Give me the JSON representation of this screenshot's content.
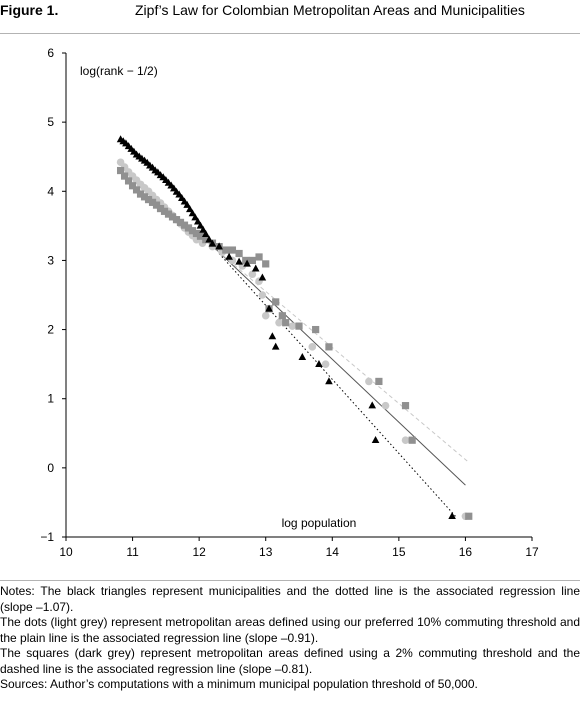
{
  "figure": {
    "label": "Figure 1.",
    "title": "Zipf’s Law for Colombian Metropolitan Areas and Municipalities"
  },
  "chart_data": {
    "type": "scatter",
    "ylabel": "log(rank − 1/2)",
    "xlabel": "log population",
    "xlim": [
      10,
      17
    ],
    "ylim": [
      -1,
      6
    ],
    "x_ticks": [
      "10",
      "11",
      "12",
      "13",
      "14",
      "15",
      "16",
      "17"
    ],
    "y_ticks": [
      "−1",
      "0",
      "1",
      "2",
      "3",
      "4",
      "5",
      "6"
    ],
    "grid": false,
    "series": [
      {
        "marker": "triangle",
        "color": "#000000",
        "points": [
          [
            10.82,
            4.75
          ],
          [
            10.86,
            4.72
          ],
          [
            10.9,
            4.69
          ],
          [
            10.94,
            4.65
          ],
          [
            10.98,
            4.61
          ],
          [
            11.02,
            4.57
          ],
          [
            11.06,
            4.53
          ],
          [
            11.1,
            4.5
          ],
          [
            11.14,
            4.47
          ],
          [
            11.18,
            4.44
          ],
          [
            11.22,
            4.41
          ],
          [
            11.26,
            4.37
          ],
          [
            11.3,
            4.34
          ],
          [
            11.34,
            4.3
          ],
          [
            11.38,
            4.27
          ],
          [
            11.42,
            4.23
          ],
          [
            11.46,
            4.2
          ],
          [
            11.5,
            4.16
          ],
          [
            11.54,
            4.12
          ],
          [
            11.58,
            4.08
          ],
          [
            11.62,
            4.04
          ],
          [
            11.66,
            3.99
          ],
          [
            11.7,
            3.95
          ],
          [
            11.74,
            3.9
          ],
          [
            11.78,
            3.85
          ],
          [
            11.82,
            3.8
          ],
          [
            11.86,
            3.74
          ],
          [
            11.9,
            3.68
          ],
          [
            11.94,
            3.62
          ],
          [
            11.98,
            3.56
          ],
          [
            12.02,
            3.5
          ],
          [
            12.06,
            3.44
          ],
          [
            12.1,
            3.38
          ],
          [
            12.15,
            3.3
          ],
          [
            12.2,
            3.24
          ],
          [
            12.3,
            3.2
          ],
          [
            12.45,
            3.05
          ],
          [
            12.6,
            2.98
          ],
          [
            12.72,
            2.95
          ],
          [
            12.85,
            2.88
          ],
          [
            12.95,
            2.75
          ],
          [
            13.05,
            2.3
          ],
          [
            13.1,
            1.9
          ],
          [
            13.15,
            1.75
          ],
          [
            13.55,
            1.6
          ],
          [
            13.8,
            1.5
          ],
          [
            13.95,
            1.25
          ],
          [
            14.6,
            0.9
          ],
          [
            14.65,
            0.4
          ],
          [
            15.8,
            -0.7
          ]
        ]
      },
      {
        "marker": "circle",
        "color": "#c8c8c8",
        "points": [
          [
            10.82,
            4.42
          ],
          [
            10.88,
            4.35
          ],
          [
            10.94,
            4.28
          ],
          [
            11.0,
            4.22
          ],
          [
            11.06,
            4.16
          ],
          [
            11.12,
            4.1
          ],
          [
            11.18,
            4.05
          ],
          [
            11.24,
            4.0
          ],
          [
            11.3,
            3.94
          ],
          [
            11.36,
            3.88
          ],
          [
            11.42,
            3.83
          ],
          [
            11.48,
            3.77
          ],
          [
            11.54,
            3.71
          ],
          [
            11.6,
            3.65
          ],
          [
            11.66,
            3.59
          ],
          [
            11.72,
            3.53
          ],
          [
            11.78,
            3.47
          ],
          [
            11.84,
            3.41
          ],
          [
            11.9,
            3.36
          ],
          [
            11.96,
            3.3
          ],
          [
            12.05,
            3.25
          ],
          [
            12.2,
            3.2
          ],
          [
            12.35,
            3.12
          ],
          [
            12.5,
            3.0
          ],
          [
            12.65,
            2.92
          ],
          [
            12.8,
            2.8
          ],
          [
            12.9,
            2.7
          ],
          [
            12.95,
            2.5
          ],
          [
            13.0,
            2.2
          ],
          [
            13.2,
            2.1
          ],
          [
            13.4,
            2.05
          ],
          [
            13.7,
            1.75
          ],
          [
            13.9,
            1.5
          ],
          [
            14.55,
            1.25
          ],
          [
            14.8,
            0.9
          ],
          [
            15.1,
            0.4
          ],
          [
            16.0,
            -0.7
          ]
        ]
      },
      {
        "marker": "square",
        "color": "#909090",
        "points": [
          [
            10.82,
            4.3
          ],
          [
            10.88,
            4.22
          ],
          [
            10.94,
            4.15
          ],
          [
            11.0,
            4.08
          ],
          [
            11.06,
            4.02
          ],
          [
            11.12,
            3.96
          ],
          [
            11.18,
            3.92
          ],
          [
            11.24,
            3.88
          ],
          [
            11.3,
            3.84
          ],
          [
            11.36,
            3.8
          ],
          [
            11.42,
            3.75
          ],
          [
            11.48,
            3.71
          ],
          [
            11.54,
            3.67
          ],
          [
            11.6,
            3.63
          ],
          [
            11.66,
            3.59
          ],
          [
            11.72,
            3.55
          ],
          [
            11.78,
            3.51
          ],
          [
            11.84,
            3.47
          ],
          [
            11.9,
            3.43
          ],
          [
            11.96,
            3.39
          ],
          [
            12.02,
            3.35
          ],
          [
            12.1,
            3.3
          ],
          [
            12.2,
            3.25
          ],
          [
            12.3,
            3.2
          ],
          [
            12.4,
            3.15
          ],
          [
            12.5,
            3.15
          ],
          [
            12.6,
            3.1
          ],
          [
            12.7,
            3.0
          ],
          [
            12.8,
            3.0
          ],
          [
            12.9,
            3.05
          ],
          [
            13.0,
            2.95
          ],
          [
            13.05,
            2.3
          ],
          [
            13.15,
            2.4
          ],
          [
            13.25,
            2.2
          ],
          [
            13.3,
            2.1
          ],
          [
            13.5,
            2.05
          ],
          [
            13.75,
            2.0
          ],
          [
            13.95,
            1.75
          ],
          [
            14.7,
            1.25
          ],
          [
            15.1,
            0.9
          ],
          [
            15.2,
            0.4
          ],
          [
            16.05,
            -0.7
          ]
        ]
      }
    ],
    "regression_lines": [
      {
        "style": "dotted",
        "color": "#000000",
        "x": [
          12.3,
          15.85
        ],
        "y": [
          3.1,
          -0.7
        ]
      },
      {
        "style": "solid",
        "color": "#555555",
        "x": [
          12.1,
          16.0
        ],
        "y": [
          3.3,
          -0.25
        ]
      },
      {
        "style": "dashed",
        "color": "#c8c8c8",
        "x": [
          12.2,
          16.05
        ],
        "y": [
          3.2,
          0.08
        ]
      }
    ]
  },
  "notes": [
    "Notes: The black triangles represent municipalities and the dotted line is the associated regression line (slope –1.07).",
    "The dots (light grey) represent metropolitan areas defined using our preferred 10% commuting threshold and the plain line is the associated regression line (slope –0.91).",
    "The squares (dark grey) represent metropolitan areas defined using a 2% commuting threshold and the dashed line is the associated regression line (slope –0.81).",
    "Sources: Author’s computations with a minimum municipal population threshold of 50,000."
  ]
}
